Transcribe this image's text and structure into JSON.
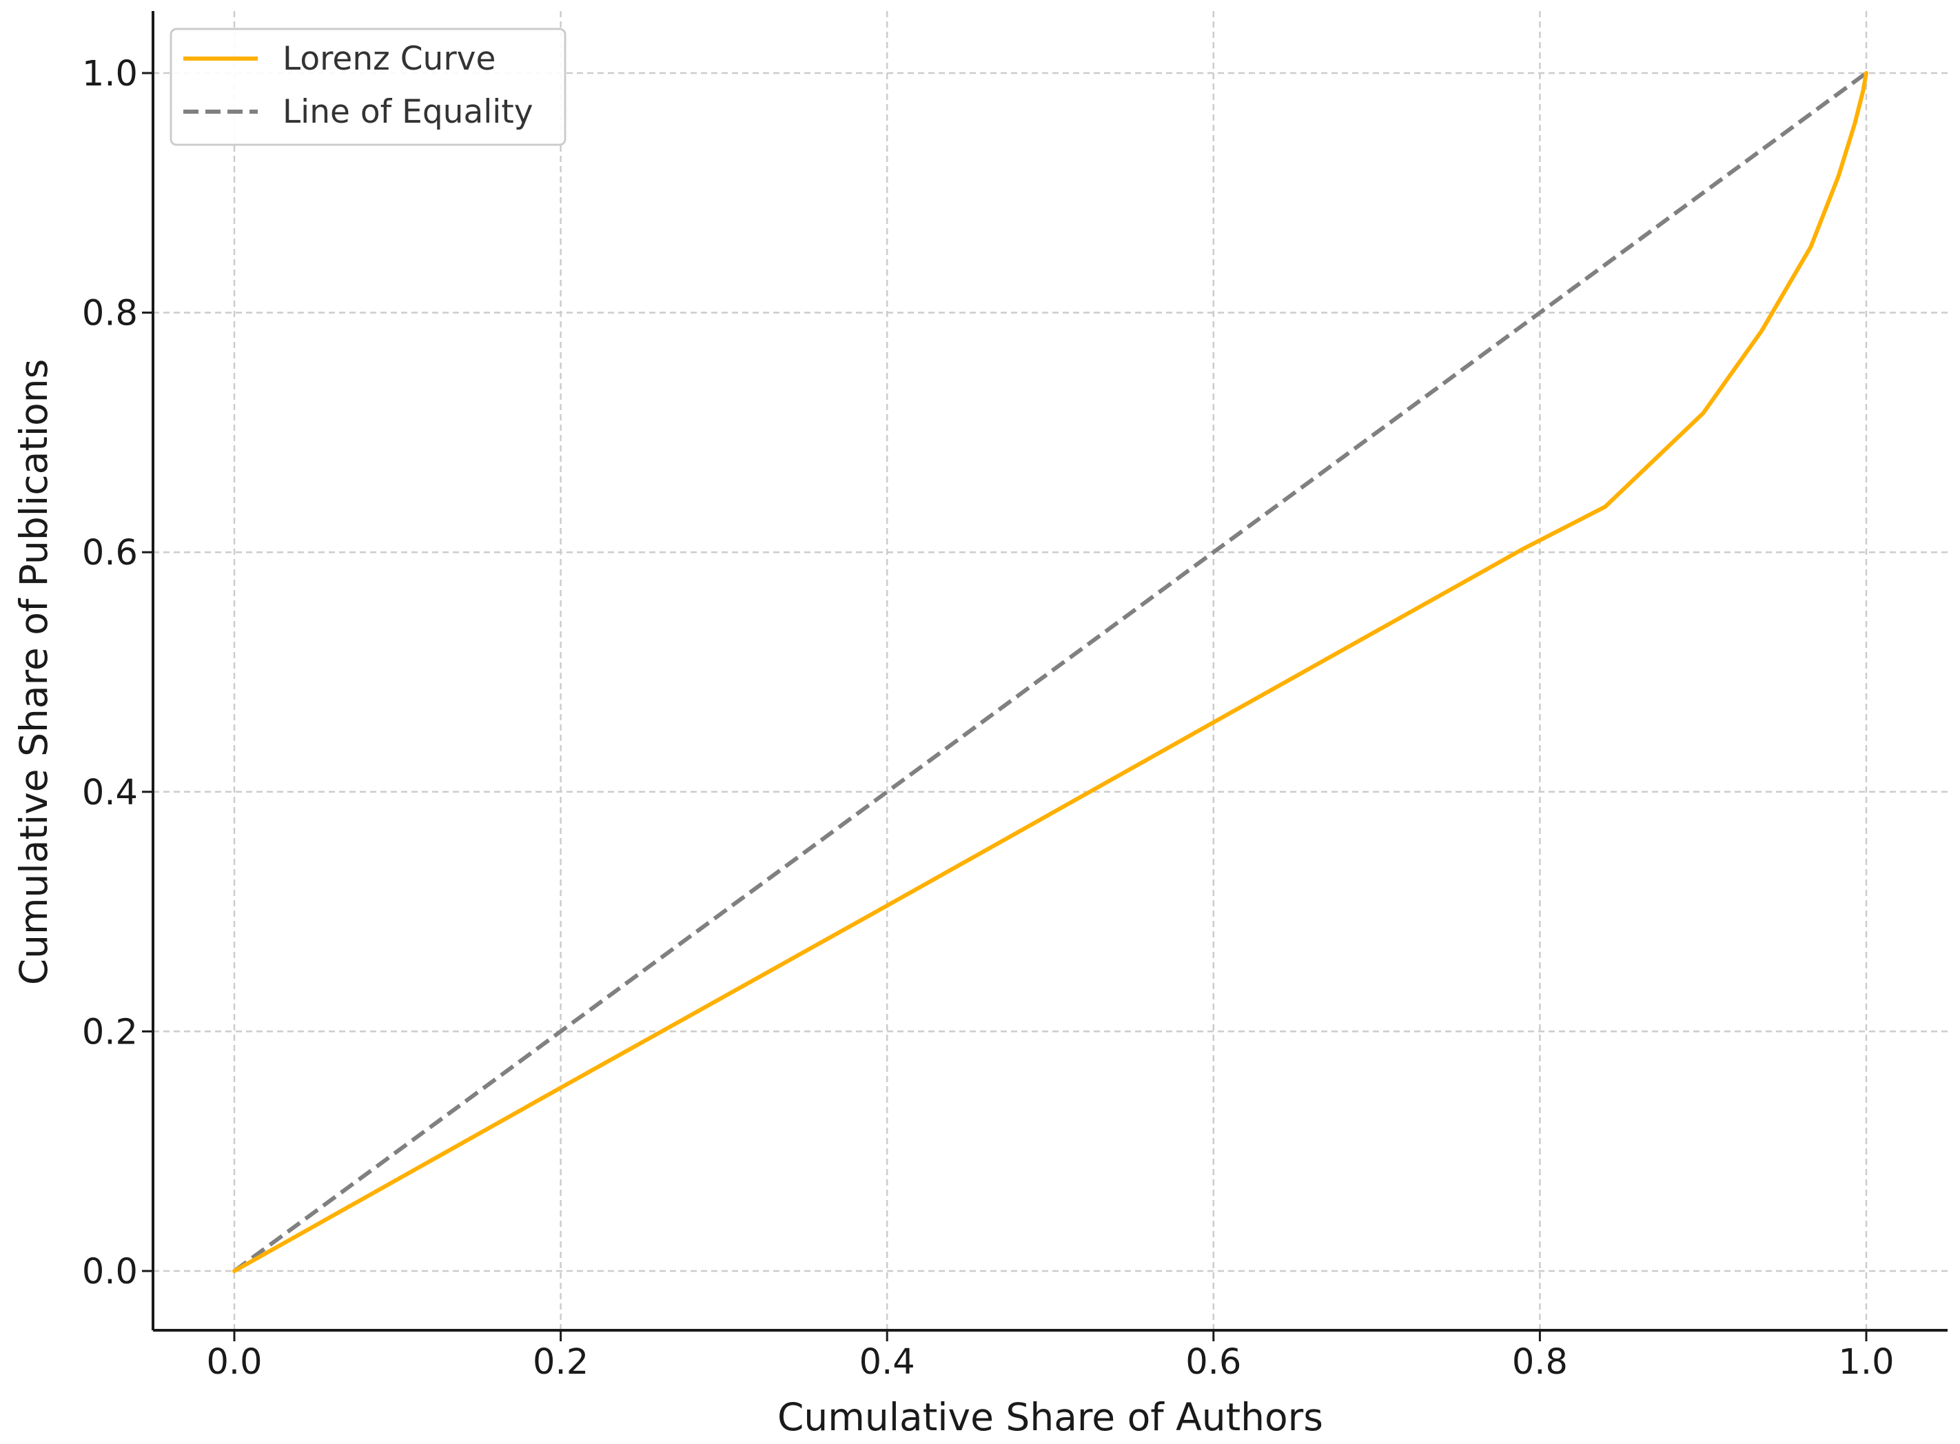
{
  "chart_data": {
    "type": "line",
    "title": "",
    "xlabel": "Cumulative Share of Authors",
    "ylabel": "Cumulative Share of Publications",
    "xlim": [
      -0.05,
      1.05
    ],
    "ylim": [
      -0.05,
      1.05
    ],
    "xticks": [
      "0.0",
      "0.2",
      "0.4",
      "0.6",
      "0.8",
      "1.0"
    ],
    "yticks": [
      "0.0",
      "0.2",
      "0.4",
      "0.6",
      "0.8",
      "1.0"
    ],
    "grid": true,
    "legend_position": "top-left",
    "series": [
      {
        "name": "Lorenz Curve",
        "color": "#ffb000",
        "style": "solid",
        "x": [
          0.0,
          0.2,
          0.4,
          0.6,
          0.79,
          0.84,
          0.9,
          0.936,
          0.966,
          0.983,
          0.993,
          0.998,
          1.0
        ],
        "y": [
          0.0,
          0.153,
          0.305,
          0.458,
          0.603,
          0.638,
          0.716,
          0.785,
          0.855,
          0.914,
          0.958,
          0.985,
          1.0
        ]
      },
      {
        "name": "Line of Equality",
        "color": "#808080",
        "style": "dashed",
        "x": [
          0.0,
          1.0
        ],
        "y": [
          0.0,
          1.0
        ]
      }
    ]
  }
}
